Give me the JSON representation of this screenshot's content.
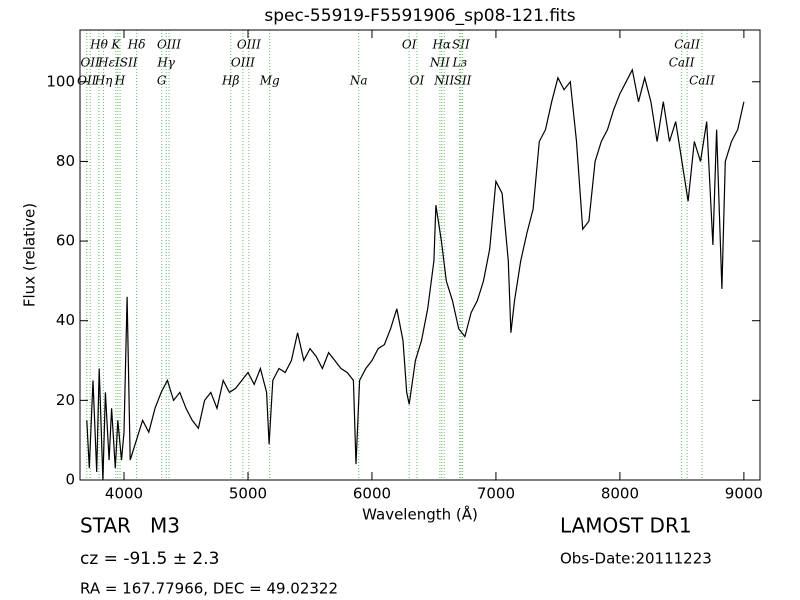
{
  "chart_data": {
    "type": "line",
    "title": "spec-55919-F5591906_sp08-121.fits",
    "x_label": "Wavelength (Å)",
    "y_label": "Flux (relative)",
    "xlim": [
      3645,
      9130
    ],
    "ylim": [
      0,
      113
    ],
    "xticks": [
      4000,
      5000,
      6000,
      7000,
      8000,
      9000
    ],
    "yticks": [
      0,
      20,
      40,
      60,
      80,
      100
    ],
    "color": "#000000",
    "line_color": "#66bb66",
    "x": [
      3700,
      3720,
      3750,
      3780,
      3800,
      3830,
      3850,
      3880,
      3900,
      3930,
      3950,
      3980,
      4000,
      4025,
      4050,
      4100,
      4150,
      4200,
      4250,
      4300,
      4350,
      4400,
      4450,
      4500,
      4550,
      4600,
      4650,
      4700,
      4750,
      4800,
      4850,
      4900,
      4950,
      5000,
      5050,
      5100,
      5150,
      5170,
      5200,
      5250,
      5300,
      5350,
      5400,
      5450,
      5500,
      5550,
      5600,
      5650,
      5700,
      5750,
      5800,
      5850,
      5871,
      5900,
      5950,
      6000,
      6050,
      6100,
      6150,
      6200,
      6250,
      6280,
      6300,
      6350,
      6400,
      6450,
      6500,
      6516,
      6560,
      6600,
      6650,
      6700,
      6750,
      6800,
      6850,
      6900,
      6950,
      7000,
      7050,
      7100,
      7121,
      7150,
      7200,
      7250,
      7300,
      7350,
      7400,
      7450,
      7500,
      7550,
      7600,
      7650,
      7700,
      7750,
      7800,
      7850,
      7900,
      7950,
      8000,
      8050,
      8100,
      8150,
      8200,
      8250,
      8300,
      8350,
      8400,
      8450,
      8500,
      8550,
      8600,
      8650,
      8700,
      8750,
      8780,
      8823,
      8850,
      8900,
      8950,
      9000
    ],
    "values": [
      15,
      3,
      25,
      2,
      28,
      0,
      22,
      5,
      18,
      3,
      15,
      5,
      12,
      46,
      5,
      10,
      15,
      12,
      18,
      22,
      25,
      20,
      22,
      18,
      15,
      13,
      20,
      22,
      18,
      25,
      22,
      23,
      25,
      27,
      24,
      28,
      22,
      9,
      25,
      28,
      27,
      30,
      37,
      30,
      33,
      31,
      28,
      32,
      30,
      28,
      27,
      25,
      4,
      25,
      28,
      30,
      33,
      34,
      38,
      43,
      35,
      22,
      19,
      30,
      35,
      43,
      55,
      69,
      60,
      50,
      45,
      38,
      36,
      42,
      45,
      50,
      58,
      75,
      72,
      55,
      37,
      45,
      55,
      62,
      68,
      85,
      88,
      95,
      101,
      98,
      100,
      85,
      63,
      65,
      80,
      85,
      88,
      93,
      97,
      100,
      103,
      95,
      101,
      95,
      85,
      95,
      85,
      90,
      80,
      70,
      85,
      80,
      90,
      59,
      88,
      48,
      80,
      85,
      88,
      95
    ],
    "annotations": [
      [
        {
          "text": "Hθ",
          "x": 3798
        },
        {
          "text": "K",
          "x": 3934
        },
        {
          "text": "Hδ",
          "x": 4102
        },
        {
          "text": "OIII",
          "x": 4363
        },
        {
          "text": "OIII",
          "x": 5007
        },
        {
          "text": "OI",
          "x": 6300
        },
        {
          "text": "Hα",
          "x": 6563
        },
        {
          "text": "SII",
          "x": 6717
        },
        {
          "text": "CaII",
          "x": 8542
        }
      ],
      [
        {
          "text": "OII",
          "x": 3727
        },
        {
          "text": "HεISII",
          "x": 3950
        },
        {
          "text": "Hγ",
          "x": 4340
        },
        {
          "text": "OIII",
          "x": 4959
        },
        {
          "text": "NII",
          "x": 6548
        },
        {
          "text": "Lз",
          "x": 6708
        },
        {
          "text": "CaII",
          "x": 8498
        }
      ],
      [
        {
          "text": "OII",
          "x": 3700
        },
        {
          "text": "Hη",
          "x": 3835
        },
        {
          "text": "H",
          "x": 3968
        },
        {
          "text": "G",
          "x": 4304
        },
        {
          "text": "Hβ",
          "x": 4861
        },
        {
          "text": "Mg",
          "x": 5175
        },
        {
          "text": "Na",
          "x": 5893
        },
        {
          "text": "OI",
          "x": 6363
        },
        {
          "text": "NII",
          "x": 6583
        },
        {
          "text": "SII",
          "x": 6731
        },
        {
          "text": "CaII",
          "x": 8662
        }
      ]
    ]
  },
  "info": {
    "class": "STAR   M3",
    "cz": "cz = -91.5 ± 2.3",
    "coords": "RA = 167.77966, DEC = 49.02322",
    "survey": "LAMOST DR1",
    "obs_date": "Obs-Date:20111223"
  }
}
